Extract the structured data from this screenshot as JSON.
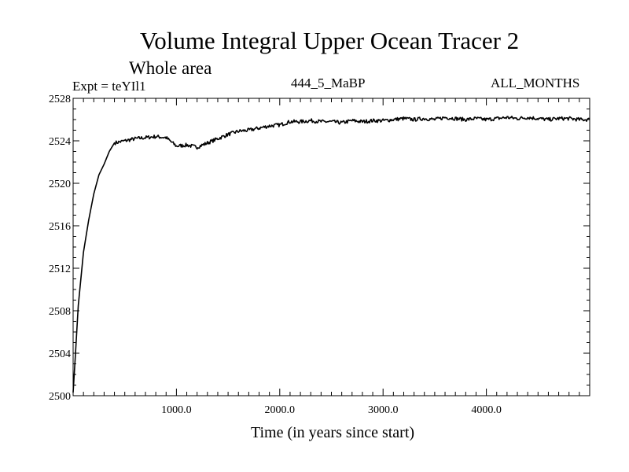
{
  "chart_data": {
    "type": "line",
    "title": "Volume Integral Upper Ocean Tracer 2",
    "subtitle": "Whole area",
    "annotation_left": "Expt = teYIl1",
    "annotation_center": "444_5_MaBP",
    "annotation_right": "ALL_MONTHS",
    "xlabel": "Time (in years since start)",
    "ylabel": "",
    "xlim": [
      0,
      5000
    ],
    "ylim": [
      2500,
      2528
    ],
    "xticks": [
      1000,
      2000,
      3000,
      4000
    ],
    "xtick_labels": [
      "1000.0",
      "2000.0",
      "3000.0",
      "4000.0"
    ],
    "yticks": [
      2500,
      2504,
      2508,
      2512,
      2516,
      2520,
      2524,
      2528
    ],
    "ytick_labels": [
      "2500",
      "2504",
      "2508",
      "2512",
      "2516",
      "2520",
      "2524",
      "2528"
    ],
    "grid": false,
    "series": [
      {
        "name": "Tracer 2",
        "color": "#000000",
        "x": [
          0,
          20,
          50,
          100,
          150,
          200,
          250,
          300,
          350,
          400,
          450,
          500,
          600,
          700,
          800,
          900,
          1000,
          1100,
          1200,
          1300,
          1400,
          1500,
          1600,
          1700,
          1800,
          1900,
          2000,
          2100,
          2200,
          2300,
          2400,
          2500,
          2600,
          2700,
          2800,
          2900,
          3000,
          3100,
          3200,
          3300,
          3400,
          3500,
          3600,
          3700,
          3800,
          3900,
          4000,
          4100,
          4200,
          4300,
          4400,
          4500,
          4600,
          4700,
          4800,
          4900,
          5000
        ],
        "y": [
          2500.3,
          2503.5,
          2508.5,
          2513.5,
          2516.5,
          2519.0,
          2520.8,
          2521.8,
          2523.0,
          2523.8,
          2523.9,
          2524.0,
          2524.2,
          2524.3,
          2524.4,
          2524.3,
          2523.5,
          2523.6,
          2523.4,
          2523.8,
          2524.2,
          2524.6,
          2524.9,
          2525.0,
          2525.2,
          2525.4,
          2525.5,
          2525.8,
          2525.8,
          2525.9,
          2525.8,
          2525.8,
          2525.7,
          2525.9,
          2525.8,
          2525.9,
          2525.9,
          2526.0,
          2526.1,
          2526.0,
          2526.1,
          2526.0,
          2526.2,
          2526.1,
          2526.0,
          2526.1,
          2526.0,
          2526.1,
          2526.2,
          2526.1,
          2526.2,
          2526.1,
          2526.0,
          2526.1,
          2526.1,
          2526.0,
          2526.0
        ]
      }
    ]
  }
}
